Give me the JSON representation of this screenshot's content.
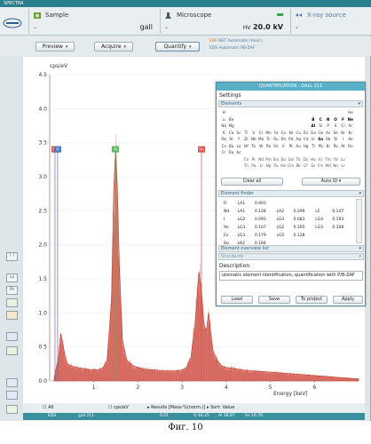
{
  "window": {
    "title": "SPECTRA"
  },
  "header": {
    "sample": {
      "caption": "Sample",
      "value": "gall"
    },
    "microscope": {
      "caption": "Microscope",
      "hv_label": "HV",
      "hv_value": "20.0 kV"
    },
    "xray": {
      "caption": "X-ray source"
    }
  },
  "toolbar": {
    "preview": "Preview",
    "acquire": "Acquire",
    "quantify": "Quantify",
    "quant_line1_tag": "EBP",
    "quant_line1": "BBT Automatic (mod.)",
    "quant_line2_tag": "EDS",
    "quant_line2": "Automatic PB-ZAF"
  },
  "left_tools": [
    "? ?",
    "La",
    "Pk",
    "",
    "",
    "",
    "",
    "",
    ""
  ],
  "chart_data": {
    "type": "line",
    "title": "",
    "ylabel": "cps/eV",
    "xlabel": "Energy [keV]",
    "xlim": [
      0,
      7.0
    ],
    "ylim": [
      0,
      4.5
    ],
    "yticks": [
      "0.0",
      "0.5",
      "1.0",
      "1.5",
      "2.0",
      "2.5",
      "3.0",
      "3.5",
      "4.0",
      "4.5"
    ],
    "xticks": [
      "1",
      "2",
      "3",
      "4",
      "5",
      "6"
    ],
    "series": [
      {
        "points": [
          [
            0.1,
            0.05
          ],
          [
            0.2,
            0.35
          ],
          [
            0.25,
            0.7
          ],
          [
            0.3,
            0.55
          ],
          [
            0.35,
            0.35
          ],
          [
            0.4,
            0.25
          ],
          [
            0.5,
            0.22
          ],
          [
            0.6,
            0.2
          ],
          [
            0.7,
            0.19
          ],
          [
            0.8,
            0.18
          ],
          [
            0.9,
            0.17
          ],
          [
            1.0,
            0.16
          ],
          [
            1.1,
            0.17
          ],
          [
            1.2,
            0.19
          ],
          [
            1.3,
            0.3
          ],
          [
            1.4,
            1.2
          ],
          [
            1.45,
            2.8
          ],
          [
            1.49,
            3.4
          ],
          [
            1.53,
            2.9
          ],
          [
            1.58,
            1.7
          ],
          [
            1.65,
            0.6
          ],
          [
            1.75,
            0.3
          ],
          [
            1.9,
            0.22
          ],
          [
            2.0,
            0.2
          ],
          [
            2.1,
            0.18
          ],
          [
            2.2,
            0.17
          ],
          [
            2.4,
            0.16
          ],
          [
            2.6,
            0.15
          ],
          [
            2.8,
            0.15
          ],
          [
            3.0,
            0.16
          ],
          [
            3.1,
            0.2
          ],
          [
            3.2,
            0.35
          ],
          [
            3.3,
            0.9
          ],
          [
            3.38,
            1.6
          ],
          [
            3.44,
            1.35
          ],
          [
            3.5,
            0.8
          ],
          [
            3.55,
            0.75
          ],
          [
            3.6,
            1.0
          ],
          [
            3.65,
            0.7
          ],
          [
            3.7,
            0.45
          ],
          [
            3.8,
            0.3
          ],
          [
            3.9,
            0.22
          ],
          [
            4.0,
            0.2
          ],
          [
            4.2,
            0.18
          ],
          [
            4.4,
            0.16
          ],
          [
            4.6,
            0.15
          ],
          [
            4.8,
            0.14
          ],
          [
            5.0,
            0.13
          ],
          [
            5.2,
            0.12
          ],
          [
            5.4,
            0.11
          ],
          [
            5.6,
            0.1
          ],
          [
            5.8,
            0.09
          ],
          [
            6.0,
            0.08
          ],
          [
            6.2,
            0.07
          ],
          [
            6.4,
            0.06
          ],
          [
            6.6,
            0.05
          ],
          [
            6.8,
            0.04
          ],
          [
            7.0,
            0.03
          ]
        ]
      }
    ],
    "markers": [
      {
        "label": "Sn",
        "x": 0.12,
        "color": "#d9534f"
      },
      {
        "label": "O",
        "x": 0.18,
        "color": "#4a76c2"
      },
      {
        "label": "Al",
        "x": 1.49,
        "color": "#5cb85c"
      },
      {
        "label": "Sn",
        "x": 3.44,
        "color": "#d9534f"
      }
    ],
    "line_color": "#c0392b",
    "fill_color": "#e58d86"
  },
  "status": {
    "all": "All",
    "cps": "cps/eV",
    "results": "Results [Mass-%(norm.)]",
    "sort": "Sort: Value",
    "row_tag": "EDS",
    "row_sample": "gall 211",
    "row_v": "0.01",
    "row_o": "O 44.25",
    "row_al": "Al 38.97",
    "row_sn": "Sn 16.78"
  },
  "panel": {
    "title": "QUANTIFICATION - GALL 211",
    "settings": "Settings",
    "elements_bar": "Elements",
    "periodic": [
      [
        "H",
        "",
        "",
        "",
        "",
        "",
        "",
        "",
        "",
        "",
        "",
        "",
        "",
        "",
        "",
        "",
        "",
        "He"
      ],
      [
        "Li",
        "Be",
        "",
        "",
        "",
        "",
        "",
        "",
        "",
        "",
        "",
        "",
        "B",
        "C",
        "N",
        "O",
        "F",
        "Ne"
      ],
      [
        "Na",
        "Mg",
        "",
        "",
        "",
        "",
        "",
        "",
        "",
        "",
        "",
        "",
        "Al",
        "Si",
        "P",
        "S",
        "Cl",
        "Ar"
      ],
      [
        "K",
        "Ca",
        "Sc",
        "Ti",
        "V",
        "Cr",
        "Mn",
        "Fe",
        "Co",
        "Ni",
        "Cu",
        "Zn",
        "Ga",
        "Ge",
        "As",
        "Se",
        "Br",
        "Kr"
      ],
      [
        "Rb",
        "Sr",
        "Y",
        "Zr",
        "Nb",
        "Mo",
        "Tc",
        "Ru",
        "Rh",
        "Pd",
        "Ag",
        "Cd",
        "In",
        "Sn",
        "Sb",
        "Te",
        "I",
        "Xe"
      ],
      [
        "Cs",
        "Ba",
        "La",
        "Hf",
        "Ta",
        "W",
        "Re",
        "Os",
        "Ir",
        "Pt",
        "Au",
        "Hg",
        "Tl",
        "Pb",
        "Bi",
        "Po",
        "At",
        "Rn"
      ],
      [
        "Fr",
        "Ra",
        "Ac",
        "",
        "",
        "",
        "",
        "",
        "",
        "",
        "",
        "",
        "",
        "",
        "",
        "",
        "",
        ""
      ]
    ],
    "lanthanides": [
      "Ce",
      "Pr",
      "Nd",
      "Pm",
      "Sm",
      "Eu",
      "Gd",
      "Tb",
      "Dy",
      "Ho",
      "Er",
      "Tm",
      "Yb",
      "Lu"
    ],
    "actinides": [
      "Th",
      "Pa",
      "U",
      "Np",
      "Pu",
      "Am",
      "Cm",
      "Bk",
      "Cf",
      "Es",
      "Fm",
      "Md",
      "No",
      "Lr"
    ],
    "clear_all": "Clear all",
    "auto_id": "Auto ID",
    "finder_bar": "Element finder",
    "finder": [
      [
        "Fr",
        "LA1",
        "0.003",
        "",
        "",
        "",
        ""
      ],
      [
        "Nd",
        "LA1",
        "0.128",
        "LA2",
        "0.299",
        "LE",
        "0.147"
      ],
      [
        "I",
        "LG2",
        "0.093",
        "LG3",
        "0.083",
        "LG4",
        "0.193"
      ],
      [
        "Xe",
        "LG1",
        "0.107",
        "LG2",
        "0.305",
        "LG3",
        "0.308"
      ],
      [
        "Cs",
        "LG1",
        "0.179",
        "LG5",
        "0.128",
        "",
        ""
      ],
      [
        "Ba",
        "LB2",
        "0.184",
        "",
        "",
        "",
        ""
      ],
      [
        "La",
        "LB1",
        "0.028",
        "LB3",
        "0.128",
        "LB4",
        "0.067"
      ]
    ],
    "overview_bar": "Element overview list",
    "standards": "Standards",
    "description_label": "Description",
    "description_text": "utomatic element identification, quantification with P/B-ZAF",
    "btn_load": "Load",
    "btn_save": "Save",
    "btn_project": "To project",
    "btn_apply": "Apply"
  },
  "caption": "Фиг. 10"
}
